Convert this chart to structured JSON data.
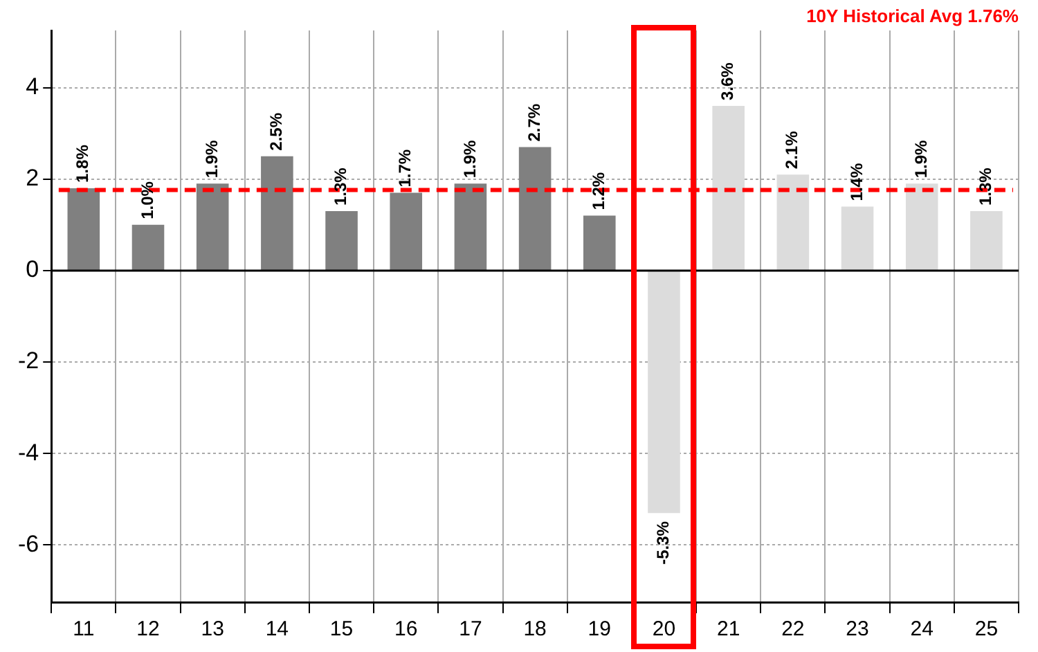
{
  "chart_data": {
    "type": "bar",
    "categories": [
      "11",
      "12",
      "13",
      "14",
      "15",
      "16",
      "17",
      "18",
      "19",
      "20",
      "21",
      "22",
      "23",
      "24",
      "25"
    ],
    "values": [
      1.8,
      1.0,
      1.9,
      2.5,
      1.3,
      1.7,
      1.9,
      2.7,
      1.2,
      -5.3,
      3.6,
      2.1,
      1.4,
      1.9,
      1.3
    ],
    "colors": [
      "#808080",
      "#808080",
      "#808080",
      "#808080",
      "#808080",
      "#808080",
      "#808080",
      "#808080",
      "#808080",
      "#dcdcdc",
      "#dcdcdc",
      "#dcdcdc",
      "#dcdcdc",
      "#dcdcdc",
      "#dcdcdc"
    ],
    "value_labels": [
      "1.8%",
      "1.0%",
      "1.9%",
      "2.5%",
      "1.3%",
      "1.7%",
      "1.9%",
      "2.7%",
      "1.2%",
      "-5.3%",
      "3.6%",
      "2.1%",
      "1.4%",
      "1.9%",
      "1.3%"
    ],
    "ylim": [
      -7.25,
      5.25
    ],
    "yticks": [
      -6,
      -4,
      -2,
      0,
      2,
      4
    ],
    "grid": true,
    "legend": false,
    "ref_lines": [
      {
        "axis": "y",
        "value": 1.76,
        "label": "10Y Historical Avg 1.76%",
        "color": "#ff0000",
        "line_style": "dashed"
      },
      {
        "axis": "y",
        "value": 0,
        "color": "#000000",
        "line_style": "solid"
      }
    ]
  }
}
